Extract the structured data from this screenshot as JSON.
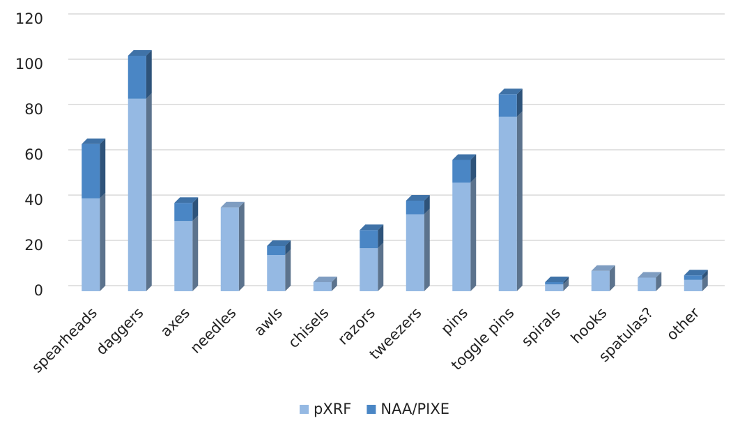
{
  "chart_data": {
    "type": "bar",
    "stacked": true,
    "categories": [
      "spearheads",
      "daggers",
      "axes",
      "needles",
      "awls",
      "chisels",
      "razors",
      "tweezers",
      "pins",
      "toggle pins",
      "spirals",
      "hooks",
      "spatulas?",
      "other"
    ],
    "series": [
      {
        "name": "pXRF",
        "color": "#95b9e3",
        "values": [
          41,
          85,
          31,
          37,
          16,
          4,
          19,
          34,
          48,
          77,
          3,
          9,
          6,
          5
        ]
      },
      {
        "name": "NAA/PIXE",
        "color": "#4a86c5",
        "values": [
          24,
          19,
          8,
          0,
          4,
          0,
          8,
          6,
          10,
          10,
          1,
          0,
          0,
          2
        ]
      }
    ],
    "ylim": [
      0,
      120
    ],
    "yticks": [
      0,
      20,
      40,
      60,
      80,
      100,
      120
    ],
    "grid": true,
    "legend": "bottom"
  }
}
